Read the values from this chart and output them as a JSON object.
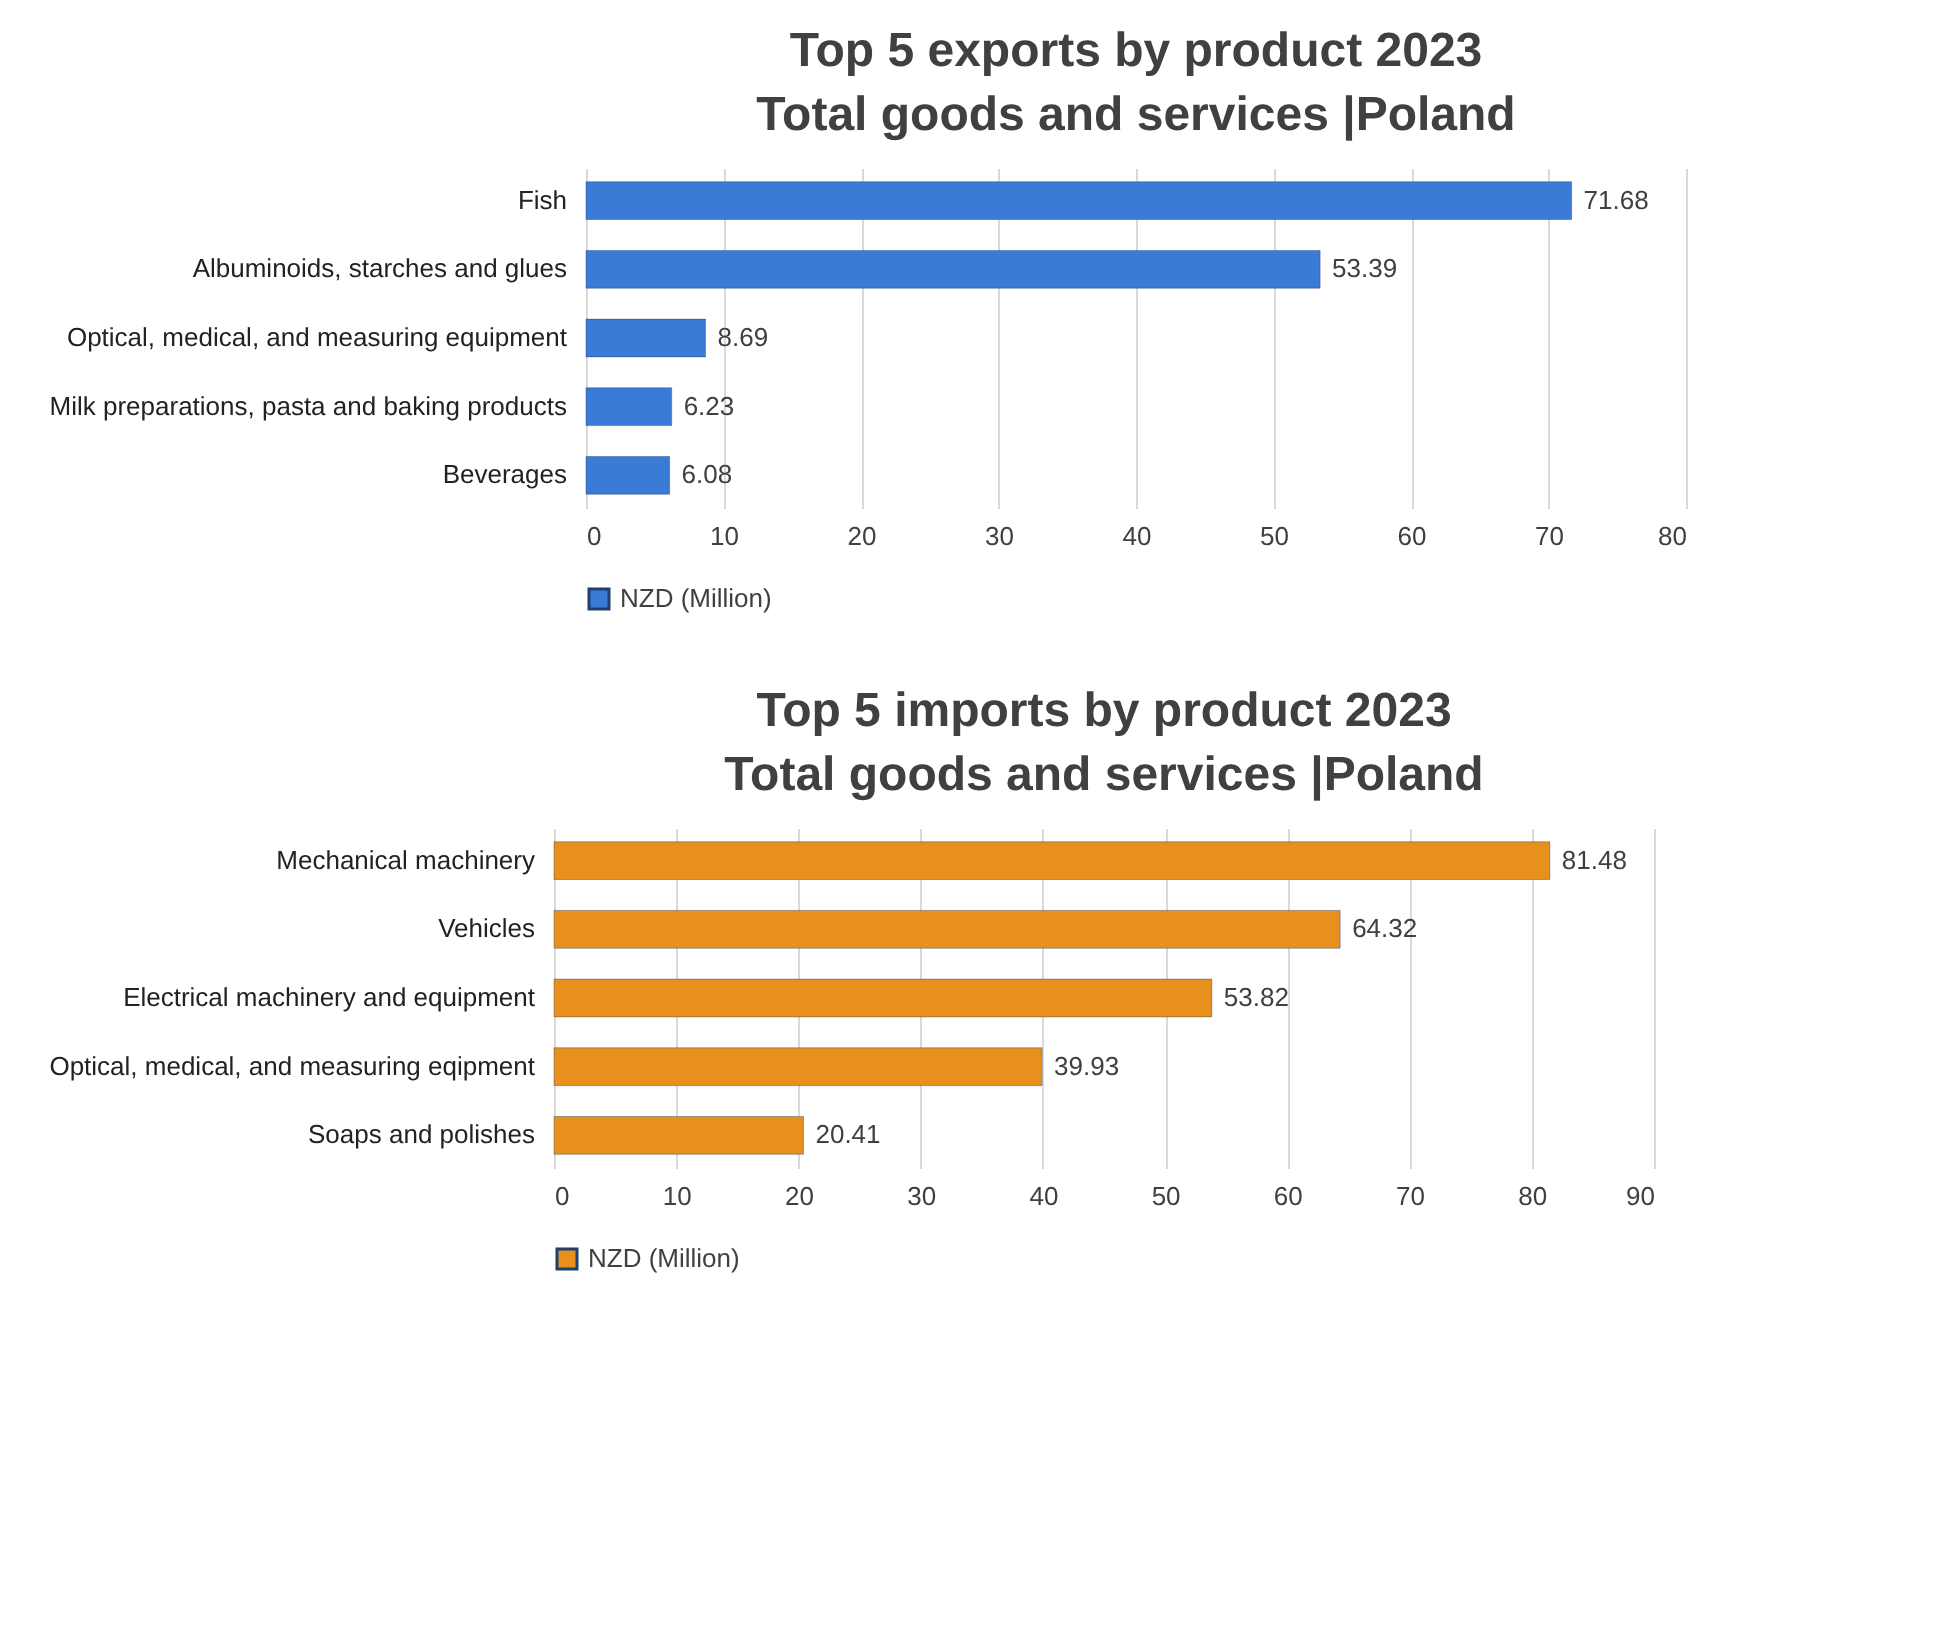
{
  "chart_data": [
    {
      "type": "bar",
      "orientation": "horizontal",
      "title": "Top 5 exports by product 2023",
      "subtitle": "Total goods and services |Poland",
      "categories": [
        "Fish",
        "Albuminoids, starches and glues",
        "Optical, medical, and measuring equipment",
        "Milk preparations, pasta and baking products",
        "Beverages"
      ],
      "series": [
        {
          "name": "NZD (Million)",
          "color": "#3a7bd5",
          "values": [
            71.68,
            53.39,
            8.69,
            6.23,
            6.08
          ]
        }
      ],
      "xlim": [
        0,
        80
      ],
      "xticks": [
        0,
        10,
        20,
        30,
        40,
        50,
        60,
        70,
        80
      ],
      "grid": "x",
      "legend": "bottom",
      "data_labels": true
    },
    {
      "type": "bar",
      "orientation": "horizontal",
      "title": "Top 5 imports by product 2023",
      "subtitle": "Total goods and services |Poland",
      "categories": [
        "Mechanical machinery",
        "Vehicles",
        "Electrical machinery and equipment",
        "Optical, medical, and measuring eqipment",
        "Soaps and polishes"
      ],
      "series": [
        {
          "name": "NZD (Million)",
          "color": "#e8901e",
          "values": [
            81.48,
            64.32,
            53.82,
            39.93,
            20.41
          ]
        }
      ],
      "xlim": [
        0,
        90
      ],
      "xticks": [
        0,
        10,
        20,
        30,
        40,
        50,
        60,
        70,
        80,
        90
      ],
      "grid": "x",
      "legend": "bottom",
      "data_labels": true
    }
  ]
}
